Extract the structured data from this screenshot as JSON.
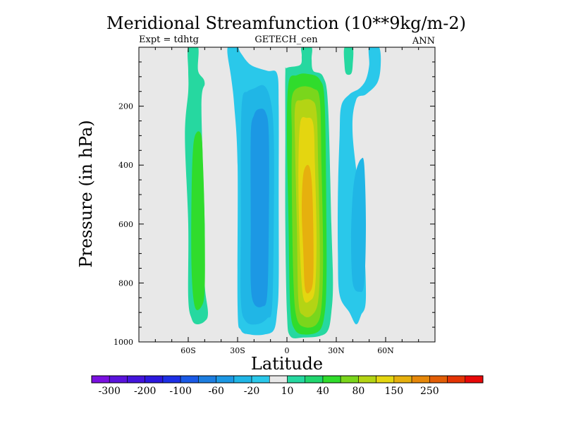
{
  "chart_data": {
    "type": "contour",
    "title": "Meridional Streamfunction (10**9kg/m-2)",
    "left_subtitle": "Expt = tdhtg",
    "center_subtitle": "GETECH_cen",
    "right_subtitle": "ANN",
    "xlabel": "Latitude",
    "ylabel": "Pressure (in hPa)",
    "xlim": [
      -90,
      90
    ],
    "ylim": [
      0,
      1000
    ],
    "y_reversed": true,
    "x_ticks": [
      {
        "value": -60,
        "label": "60S"
      },
      {
        "value": -30,
        "label": "30S"
      },
      {
        "value": 0,
        "label": "0"
      },
      {
        "value": 30,
        "label": "30N"
      },
      {
        "value": 60,
        "label": "60N"
      }
    ],
    "y_ticks": [
      {
        "value": 200,
        "label": "200"
      },
      {
        "value": 400,
        "label": "400"
      },
      {
        "value": 600,
        "label": "600"
      },
      {
        "value": 800,
        "label": "800"
      },
      {
        "value": 1000,
        "label": "1000"
      }
    ],
    "colorbar": {
      "levels": [
        -300,
        -250,
        -200,
        -150,
        -100,
        -80,
        -60,
        -40,
        -20,
        -10,
        10,
        20,
        40,
        60,
        80,
        100,
        150,
        200,
        250,
        300
      ],
      "colors": [
        "#7a10e0",
        "#5a13dc",
        "#4314dc",
        "#2c18de",
        "#1d2fe6",
        "#1a5ae6",
        "#1d7ee0",
        "#1c98e4",
        "#20b6e6",
        "#2ac8ea",
        "#e8e8e8",
        "#26d8a0",
        "#20d66e",
        "#30dc2c",
        "#7ad61c",
        "#b4d414",
        "#e4d610",
        "#e6b00e",
        "#e6880a",
        "#e25e06",
        "#e43404",
        "#e80808"
      ],
      "labels": [
        {
          "value": -300,
          "label": "-300"
        },
        {
          "value": -200,
          "label": "-200"
        },
        {
          "value": -100,
          "label": "-100"
        },
        {
          "value": -60,
          "label": "-60"
        },
        {
          "value": -20,
          "label": "-20"
        },
        {
          "value": 10,
          "label": "10"
        },
        {
          "value": 40,
          "label": "40"
        },
        {
          "value": 80,
          "label": "80"
        },
        {
          "value": 150,
          "label": "150"
        },
        {
          "value": 250,
          "label": "250"
        }
      ]
    },
    "background_color": "#e8e8e8",
    "regions": [
      {
        "name": "southern-cell-outer",
        "value": 10,
        "color": "#26d8a0",
        "points": [
          [
            -60,
            0
          ],
          [
            -54,
            0
          ],
          [
            -54,
            80
          ],
          [
            -50,
            120
          ],
          [
            -52,
            200
          ],
          [
            -50,
            600
          ],
          [
            -50,
            800
          ],
          [
            -48,
            900
          ],
          [
            -50,
            930
          ],
          [
            -55,
            940
          ],
          [
            -58,
            920
          ],
          [
            -60,
            850
          ],
          [
            -60,
            600
          ],
          [
            -62,
            300
          ],
          [
            -60,
            150
          ],
          [
            -60,
            80
          ]
        ]
      },
      {
        "name": "southern-cell-core",
        "value": 20,
        "color": "#30dc2c",
        "points": [
          [
            -52,
            300
          ],
          [
            -55,
            290
          ],
          [
            -57,
            340
          ],
          [
            -58,
            500
          ],
          [
            -58,
            750
          ],
          [
            -56,
            880
          ],
          [
            -52,
            880
          ],
          [
            -50,
            820
          ],
          [
            -50,
            600
          ],
          [
            -51,
            400
          ]
        ]
      },
      {
        "name": "trop-neg-outer",
        "value": -10,
        "color": "#2ac8ea",
        "points": [
          [
            -36,
            30
          ],
          [
            -36,
            0
          ],
          [
            -34,
            0
          ],
          [
            -30,
            0
          ],
          [
            -28,
            20
          ],
          [
            -22,
            60
          ],
          [
            -12,
            80
          ],
          [
            -6,
            90
          ],
          [
            -5,
            200
          ],
          [
            -5,
            500
          ],
          [
            -5,
            800
          ],
          [
            -6,
            900
          ],
          [
            -8,
            960
          ],
          [
            -14,
            975
          ],
          [
            -22,
            975
          ],
          [
            -28,
            960
          ],
          [
            -30,
            880
          ],
          [
            -30,
            400
          ],
          [
            -32,
            200
          ],
          [
            -34,
            100
          ]
        ]
      },
      {
        "name": "trop-neg-mid",
        "value": -20,
        "color": "#20b6e6",
        "points": [
          [
            -27,
            170
          ],
          [
            -28,
            300
          ],
          [
            -28,
            600
          ],
          [
            -28,
            860
          ],
          [
            -25,
            930
          ],
          [
            -18,
            940
          ],
          [
            -12,
            920
          ],
          [
            -9,
            880
          ],
          [
            -8,
            600
          ],
          [
            -8,
            300
          ],
          [
            -10,
            180
          ],
          [
            -14,
            130
          ],
          [
            -20,
            140
          ],
          [
            -24,
            150
          ]
        ]
      },
      {
        "name": "trop-neg-core",
        "value": -40,
        "color": "#1c98e4",
        "points": [
          [
            -20,
            230
          ],
          [
            -22,
            300
          ],
          [
            -22,
            600
          ],
          [
            -22,
            800
          ],
          [
            -20,
            870
          ],
          [
            -15,
            880
          ],
          [
            -12,
            840
          ],
          [
            -11,
            600
          ],
          [
            -11,
            300
          ],
          [
            -13,
            220
          ],
          [
            -17,
            210
          ]
        ]
      },
      {
        "name": "trop-pos-outer",
        "value": 10,
        "color": "#26d8a0",
        "points": [
          [
            -1,
            90
          ],
          [
            0,
            70
          ],
          [
            8,
            60
          ],
          [
            9,
            30
          ],
          [
            9,
            0
          ],
          [
            15,
            0
          ],
          [
            15,
            40
          ],
          [
            16,
            80
          ],
          [
            22,
            100
          ],
          [
            25,
            200
          ],
          [
            27,
            600
          ],
          [
            28,
            800
          ],
          [
            27,
            900
          ],
          [
            25,
            960
          ],
          [
            20,
            980
          ],
          [
            10,
            985
          ],
          [
            2,
            980
          ],
          [
            0,
            900
          ],
          [
            -1,
            600
          ],
          [
            -1,
            300
          ]
        ]
      },
      {
        "name": "trop-pos-20",
        "value": 20,
        "color": "#30dc2c",
        "points": [
          [
            1,
            120
          ],
          [
            6,
            95
          ],
          [
            12,
            90
          ],
          [
            20,
            110
          ],
          [
            23,
            200
          ],
          [
            24,
            600
          ],
          [
            24,
            800
          ],
          [
            23,
            900
          ],
          [
            20,
            960
          ],
          [
            12,
            975
          ],
          [
            5,
            960
          ],
          [
            2,
            880
          ],
          [
            1,
            600
          ],
          [
            0,
            300
          ]
        ]
      },
      {
        "name": "trop-pos-40",
        "value": 40,
        "color": "#7ad61c",
        "points": [
          [
            3,
            170
          ],
          [
            8,
            135
          ],
          [
            16,
            140
          ],
          [
            20,
            180
          ],
          [
            21,
            400
          ],
          [
            22,
            700
          ],
          [
            21,
            880
          ],
          [
            18,
            940
          ],
          [
            11,
            950
          ],
          [
            6,
            920
          ],
          [
            4,
            800
          ],
          [
            3,
            500
          ],
          [
            3,
            300
          ]
        ]
      },
      {
        "name": "trop-pos-60",
        "value": 60,
        "color": "#b4d414",
        "points": [
          [
            5,
            200
          ],
          [
            9,
            180
          ],
          [
            15,
            180
          ],
          [
            18,
            220
          ],
          [
            19,
            400
          ],
          [
            20,
            700
          ],
          [
            19,
            860
          ],
          [
            15,
            910
          ],
          [
            10,
            910
          ],
          [
            7,
            860
          ],
          [
            6,
            600
          ],
          [
            5,
            350
          ]
        ]
      },
      {
        "name": "trop-pos-80",
        "value": 80,
        "color": "#e4d610",
        "points": [
          [
            8,
            260
          ],
          [
            12,
            240
          ],
          [
            16,
            260
          ],
          [
            17,
            400
          ],
          [
            18,
            650
          ],
          [
            17,
            820
          ],
          [
            14,
            860
          ],
          [
            10,
            850
          ],
          [
            8,
            700
          ],
          [
            7,
            450
          ]
        ]
      },
      {
        "name": "trop-pos-100",
        "value": 100,
        "color": "#e6b00e",
        "points": [
          [
            10,
            430
          ],
          [
            13,
            400
          ],
          [
            15,
            450
          ],
          [
            16,
            600
          ],
          [
            16,
            780
          ],
          [
            14,
            830
          ],
          [
            11,
            820
          ],
          [
            10,
            700
          ],
          [
            9,
            550
          ]
        ]
      },
      {
        "name": "north-neg-outer",
        "value": -10,
        "color": "#2ac8ea",
        "points": [
          [
            50,
            0
          ],
          [
            56,
            0
          ],
          [
            57,
            60
          ],
          [
            55,
            120
          ],
          [
            48,
            160
          ],
          [
            42,
            180
          ],
          [
            40,
            300
          ],
          [
            46,
            600
          ],
          [
            48,
            850
          ],
          [
            45,
            910
          ],
          [
            42,
            940
          ],
          [
            38,
            900
          ],
          [
            32,
            840
          ],
          [
            31,
            700
          ],
          [
            31,
            500
          ],
          [
            32,
            300
          ],
          [
            33,
            200
          ],
          [
            38,
            160
          ],
          [
            44,
            140
          ],
          [
            48,
            110
          ],
          [
            50,
            60
          ]
        ]
      },
      {
        "name": "north-neg-core",
        "value": -20,
        "color": "#20b6e6",
        "points": [
          [
            42,
            420
          ],
          [
            45,
            380
          ],
          [
            47,
            400
          ],
          [
            48,
            600
          ],
          [
            47,
            800
          ],
          [
            44,
            830
          ],
          [
            40,
            800
          ],
          [
            39,
            650
          ],
          [
            40,
            500
          ]
        ]
      },
      {
        "name": "north-pos-small",
        "value": 10,
        "color": "#26d8a0",
        "points": [
          [
            35,
            0
          ],
          [
            40,
            0
          ],
          [
            40,
            60
          ],
          [
            39,
            90
          ],
          [
            36,
            90
          ],
          [
            35,
            60
          ]
        ]
      }
    ]
  }
}
